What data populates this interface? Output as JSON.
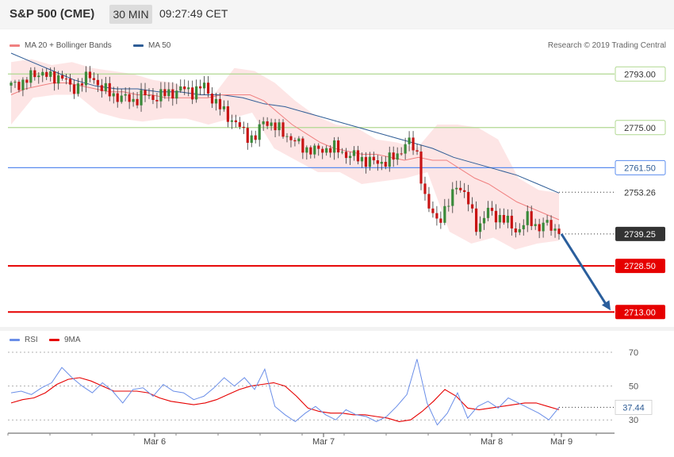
{
  "header": {
    "title": "S&P 500 (CME)",
    "timeframe": "30 MIN",
    "time": "09:27:49 CET"
  },
  "credit": "Research © 2019 Trading Central",
  "legend": {
    "ma20": "MA 20 + Bollinger Bands",
    "ma50": "MA 50",
    "rsi": "RSI",
    "rsi_ma": "9MA"
  },
  "colors": {
    "ma20": "#f08080",
    "ma50": "#2f5d96",
    "band": "#fcdcdc",
    "up": "#3a8a3a",
    "down": "#c81414",
    "support": "#e60000",
    "resistance": "#b0d890",
    "pivot": "#5b8def",
    "rsi": "#6a8ee8",
    "rsi_ma": "#e60000",
    "arrow": "#2a5e9c"
  },
  "chart_data": [
    {
      "type": "candlestick",
      "title": "S&P 500 (CME)",
      "interval": "30 MIN",
      "x_labels": [
        "Mar 6",
        "Mar 7",
        "Mar 8",
        "Mar 9"
      ],
      "ylim": [
        2708,
        2808
      ],
      "levels": [
        {
          "value": 2793.0,
          "label": "2793.00",
          "kind": "resistance"
        },
        {
          "value": 2775.0,
          "label": "2775.00",
          "kind": "resistance"
        },
        {
          "value": 2761.5,
          "label": "2761.50",
          "kind": "pivot"
        },
        {
          "value": 2728.5,
          "label": "2728.50",
          "kind": "support"
        },
        {
          "value": 2713.0,
          "label": "2713.00",
          "kind": "support"
        }
      ],
      "tags": [
        {
          "value": 2753.26,
          "label": "2753.26",
          "kind": "ma50"
        },
        {
          "value": 2739.25,
          "label": "2739.25",
          "kind": "last"
        }
      ],
      "close_path": [
        2789,
        2790,
        2792,
        2794,
        2791,
        2793,
        2787,
        2791,
        2792,
        2788,
        2786,
        2785,
        2784,
        2786,
        2785,
        2786,
        2787,
        2788,
        2787,
        2789,
        2784,
        2780,
        2777,
        2773,
        2771,
        2778,
        2775,
        2773,
        2770,
        2768,
        2767,
        2768,
        2768,
        2766,
        2765,
        2764,
        2763,
        2764,
        2765,
        2771,
        2766,
        2748,
        2744,
        2748,
        2757,
        2750,
        2741,
        2747,
        2745,
        2743,
        2740,
        2745,
        2741,
        2743,
        2739
      ],
      "ma20_path": [
        2786,
        2788,
        2789,
        2790,
        2790,
        2789,
        2788,
        2787,
        2787,
        2786,
        2786,
        2785,
        2785,
        2785,
        2785,
        2786,
        2786,
        2786,
        2784,
        2780,
        2776,
        2773,
        2770,
        2768,
        2767,
        2766,
        2766,
        2765,
        2764,
        2765,
        2764,
        2764,
        2761,
        2758,
        2756,
        2753,
        2750,
        2748,
        2746,
        2744
      ],
      "ma50_path": [
        2800,
        2797,
        2794,
        2791,
        2789,
        2788,
        2788,
        2787,
        2787,
        2786,
        2786,
        2785,
        2783,
        2782,
        2780,
        2778,
        2776,
        2774,
        2772,
        2770,
        2768,
        2765,
        2763,
        2761,
        2759,
        2756,
        2753
      ],
      "upper_band_path": [
        2797,
        2798,
        2796,
        2797,
        2795,
        2794,
        2793,
        2791,
        2790,
        2787,
        2786,
        2795,
        2794,
        2790,
        2784,
        2779,
        2776,
        2775,
        2771,
        2770,
        2768,
        2776,
        2776,
        2775,
        2771,
        2758,
        2754,
        2753
      ],
      "lower_band_path": [
        2776,
        2785,
        2786,
        2786,
        2780,
        2778,
        2777,
        2778,
        2778,
        2776,
        2778,
        2780,
        2768,
        2764,
        2760,
        2760,
        2756,
        2757,
        2758,
        2760,
        2740,
        2736,
        2738,
        2734,
        2736,
        2737
      ]
    },
    {
      "type": "line",
      "title": "RSI",
      "x_labels": [
        "Mar 6",
        "Mar 7",
        "Mar 8",
        "Mar 9"
      ],
      "yticks": [
        30,
        50,
        70
      ],
      "ylim": [
        24,
        78
      ],
      "series": [
        {
          "name": "RSI",
          "values": [
            46,
            47,
            45,
            49,
            52,
            61,
            55,
            50,
            46,
            52,
            47,
            40,
            48,
            49,
            44,
            51,
            47,
            46,
            42,
            44,
            49,
            55,
            50,
            55,
            48,
            60,
            38,
            33,
            29,
            34,
            38,
            33,
            30,
            36,
            33,
            32,
            29,
            32,
            38,
            45,
            66,
            40,
            27,
            34,
            46,
            31,
            38,
            41,
            37,
            43,
            40,
            37,
            34,
            30,
            37.44
          ]
        },
        {
          "name": "9MA",
          "values": [
            40,
            42,
            43,
            46,
            51,
            54,
            55,
            53,
            50,
            47,
            47,
            47,
            46,
            43,
            41,
            40,
            39,
            40,
            42,
            45,
            48,
            50,
            51,
            52,
            50,
            44,
            37,
            35,
            34,
            34,
            33,
            33,
            32,
            31,
            29,
            30,
            35,
            41,
            48,
            44,
            37,
            36,
            37,
            38,
            39,
            40,
            40,
            38,
            36
          ]
        }
      ],
      "last_value_label": "37.44"
    }
  ]
}
